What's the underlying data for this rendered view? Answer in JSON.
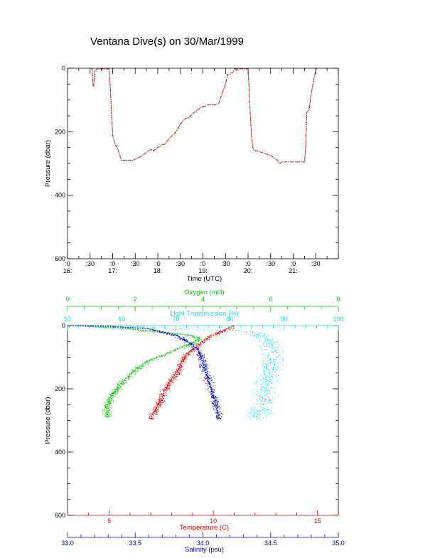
{
  "title": "Ventana Dive(s) on 30/Mar/1999",
  "colors": {
    "axis": "#000000",
    "trace": "#d02020",
    "oxygen": "#00cc00",
    "transmission": "#00e5ee",
    "temperature": "#dd0000",
    "salinity": "#0000cc"
  },
  "chart_data": [
    {
      "type": "line",
      "title": "Ventana Dive(s) on 30/Mar/1999",
      "xlabel": "Time (UTC)",
      "ylabel": "Pressure (dbar)",
      "x_unit": "hours UTC",
      "xlim": [
        16.0,
        22.0
      ],
      "ylim": [
        600,
        0
      ],
      "y_ticks": [
        "0",
        "200",
        "400",
        "600"
      ],
      "x_ticks_top": [
        ":0",
        ":30",
        ":0",
        ":30",
        ":0",
        ":30",
        ":0",
        ":30",
        ":0",
        ":30",
        ":0",
        ":30"
      ],
      "x_ticks_bottom": [
        "16:",
        "17:",
        "18:",
        "19:",
        "20:",
        "21:"
      ],
      "x_tick_values": [
        16.0,
        16.5,
        17.0,
        17.5,
        18.0,
        18.5,
        19.0,
        19.5,
        20.0,
        20.5,
        21.0,
        21.5
      ],
      "x_hour_values": [
        16.0,
        17.0,
        18.0,
        19.0,
        20.0,
        21.0
      ],
      "grid": false,
      "series": [
        {
          "x": [
            16.53,
            16.55,
            16.56,
            16.58,
            16.6,
            16.62,
            16.65,
            16.72,
            16.85,
            16.92,
            16.95,
            16.97,
            17.0,
            17.05,
            17.1,
            17.15,
            17.18,
            17.2,
            17.25,
            17.3,
            17.35,
            17.45,
            17.6,
            17.75,
            17.85,
            17.9,
            18.0,
            18.1,
            18.15,
            18.2,
            18.3,
            18.4,
            18.45,
            18.5,
            18.6,
            18.7,
            18.75,
            18.8,
            18.9,
            19.0,
            19.05,
            19.1,
            19.2,
            19.3,
            19.35,
            19.4,
            19.45,
            19.5,
            19.55,
            19.6,
            19.62,
            19.65,
            19.7,
            19.8,
            19.9,
            20.0,
            20.02,
            20.05,
            20.08,
            20.1,
            20.12,
            20.15,
            20.2,
            20.3,
            20.4,
            20.5,
            20.55,
            20.65,
            20.7,
            20.75,
            21.0,
            21.25,
            21.28,
            21.3,
            21.35,
            21.4,
            21.45,
            21.5,
            21.52
          ],
          "y": [
            0,
            5,
            50,
            55,
            10,
            6,
            2,
            2,
            2,
            2,
            60,
            130,
            210,
            240,
            250,
            270,
            285,
            290,
            290,
            290,
            290,
            290,
            280,
            265,
            255,
            260,
            250,
            240,
            240,
            230,
            215,
            200,
            190,
            175,
            160,
            155,
            145,
            140,
            130,
            120,
            120,
            115,
            115,
            115,
            110,
            90,
            70,
            50,
            20,
            18,
            15,
            15,
            2,
            2,
            2,
            2,
            60,
            150,
            220,
            245,
            255,
            260,
            260,
            265,
            270,
            275,
            280,
            290,
            300,
            295,
            295,
            295,
            240,
            140,
            130,
            80,
            40,
            5,
            0
          ]
        }
      ]
    },
    {
      "type": "scatter",
      "ylabel": "Pressure (dbar)",
      "ylim": [
        600,
        0
      ],
      "y_ticks": [
        "0",
        "200",
        "400",
        "600"
      ],
      "axes": {
        "oxygen": {
          "label": "Oxygen (ml/l)",
          "range": [
            0,
            8
          ],
          "ticks": [
            "0",
            "2",
            "4",
            "6",
            "8"
          ]
        },
        "transmission": {
          "label": "Light Transmission (%)",
          "range": [
            50,
            100
          ],
          "ticks": [
            "50",
            "60",
            "70",
            "80",
            "90",
            "100"
          ]
        },
        "temperature": {
          "label": "Temperature (C)",
          "range": [
            3.0,
            16.0
          ],
          "ticks": [
            "5",
            "10",
            "15"
          ]
        },
        "salinity": {
          "label": "Salinity (psu)",
          "range": [
            33.0,
            35.0
          ],
          "ticks": [
            "33.0",
            "33.5",
            "34.0",
            "34.5",
            "35.0"
          ]
        }
      },
      "series": [
        {
          "axis": "oxygen",
          "profile_x": [
            0.3,
            1.0,
            1.8,
            2.6,
            3.2,
            3.6,
            3.9,
            3.7,
            3.3,
            2.9,
            2.4,
            2.0,
            1.6,
            1.3,
            1.15,
            1.2
          ],
          "profile_y": [
            0,
            5,
            10,
            20,
            25,
            30,
            40,
            55,
            70,
            90,
            110,
            140,
            180,
            220,
            260,
            290
          ]
        },
        {
          "axis": "transmission",
          "profile_x": [
            60,
            65,
            70,
            75,
            80,
            84,
            86.5,
            87.5,
            87.8,
            87.5,
            87,
            86.5,
            86.5,
            86,
            85.5,
            85
          ],
          "profile_y": [
            0,
            5,
            10,
            12,
            15,
            20,
            40,
            70,
            100,
            130,
            160,
            200,
            230,
            260,
            280,
            295
          ]
        },
        {
          "axis": "temperature",
          "profile_x": [
            11.0,
            10.5,
            9.8,
            9.3,
            8.7,
            8.5,
            8.3,
            8.0,
            7.7,
            7.5,
            7.3,
            7.1,
            7.0
          ],
          "profile_y": [
            0,
            15,
            35,
            60,
            90,
            110,
            140,
            170,
            200,
            230,
            255,
            280,
            295
          ]
        },
        {
          "axis": "salinity",
          "profile_x": [
            33.0,
            33.3,
            33.6,
            33.8,
            33.92,
            33.97,
            34.0,
            34.03,
            34.06,
            34.09,
            34.11,
            34.12
          ],
          "profile_y": [
            0,
            2,
            10,
            30,
            60,
            80,
            120,
            160,
            200,
            240,
            275,
            295
          ]
        }
      ]
    }
  ]
}
